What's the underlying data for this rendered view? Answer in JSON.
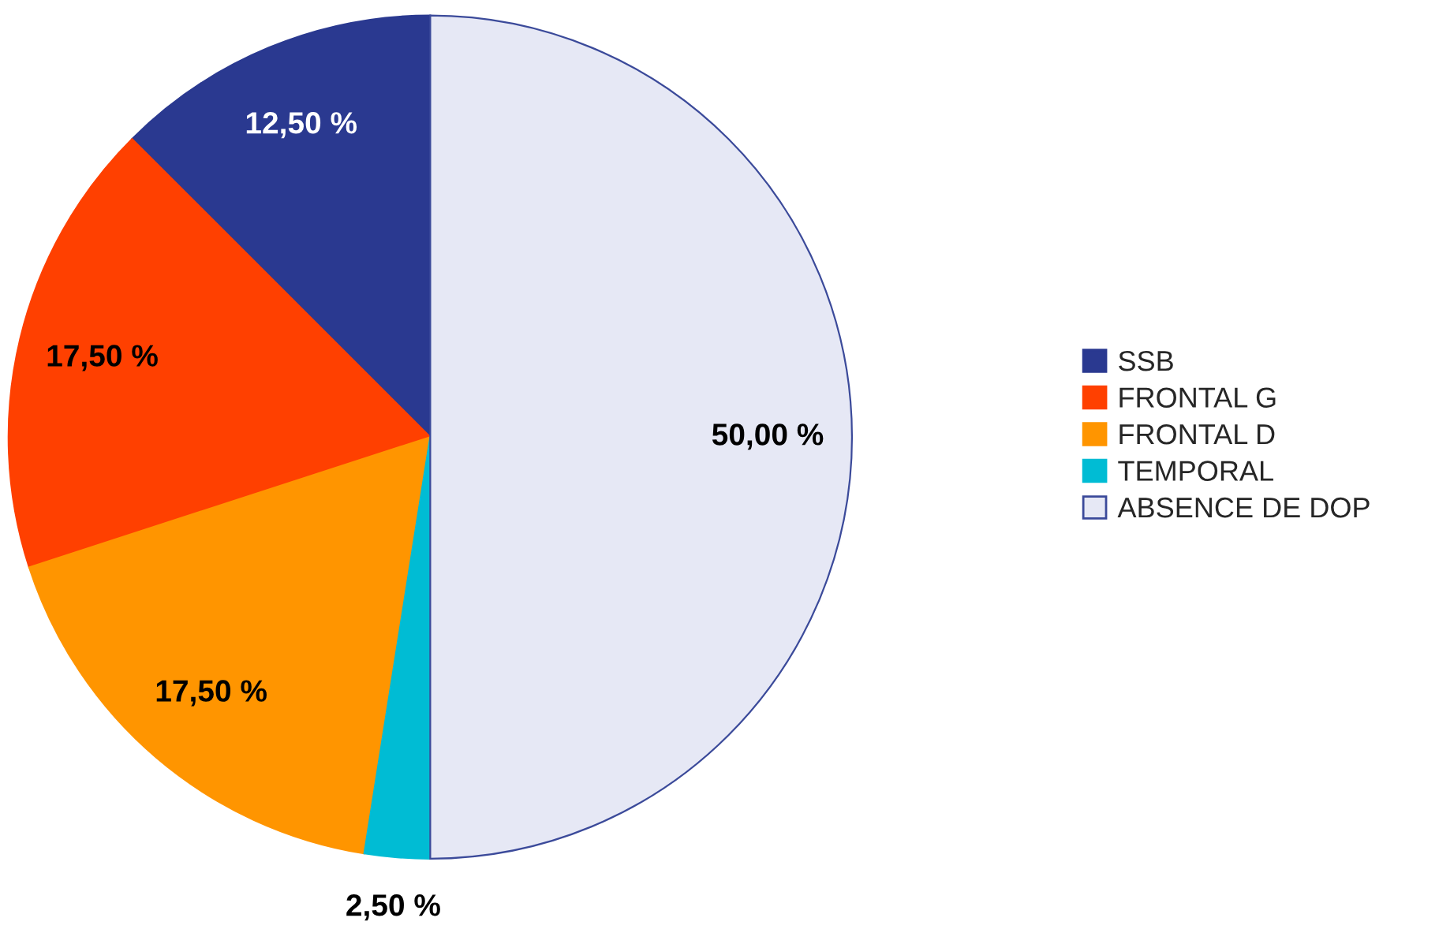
{
  "chart_data": {
    "type": "pie",
    "categories": [
      "SSB",
      "FRONTAL G",
      "FRONTAL D",
      "TEMPORAL",
      "ABSENCE DE DOP"
    ],
    "values": [
      12.5,
      17.5,
      17.5,
      2.5,
      50
    ],
    "value_labels": [
      "12,50 %",
      "17,50 %",
      "17,50 %",
      "2,50 %",
      "50,00 %"
    ],
    "colors": [
      "#2a3990",
      "#ff4000",
      "#ff9500",
      "#00bcd4",
      "#e6e8f5"
    ],
    "legend": "right"
  }
}
